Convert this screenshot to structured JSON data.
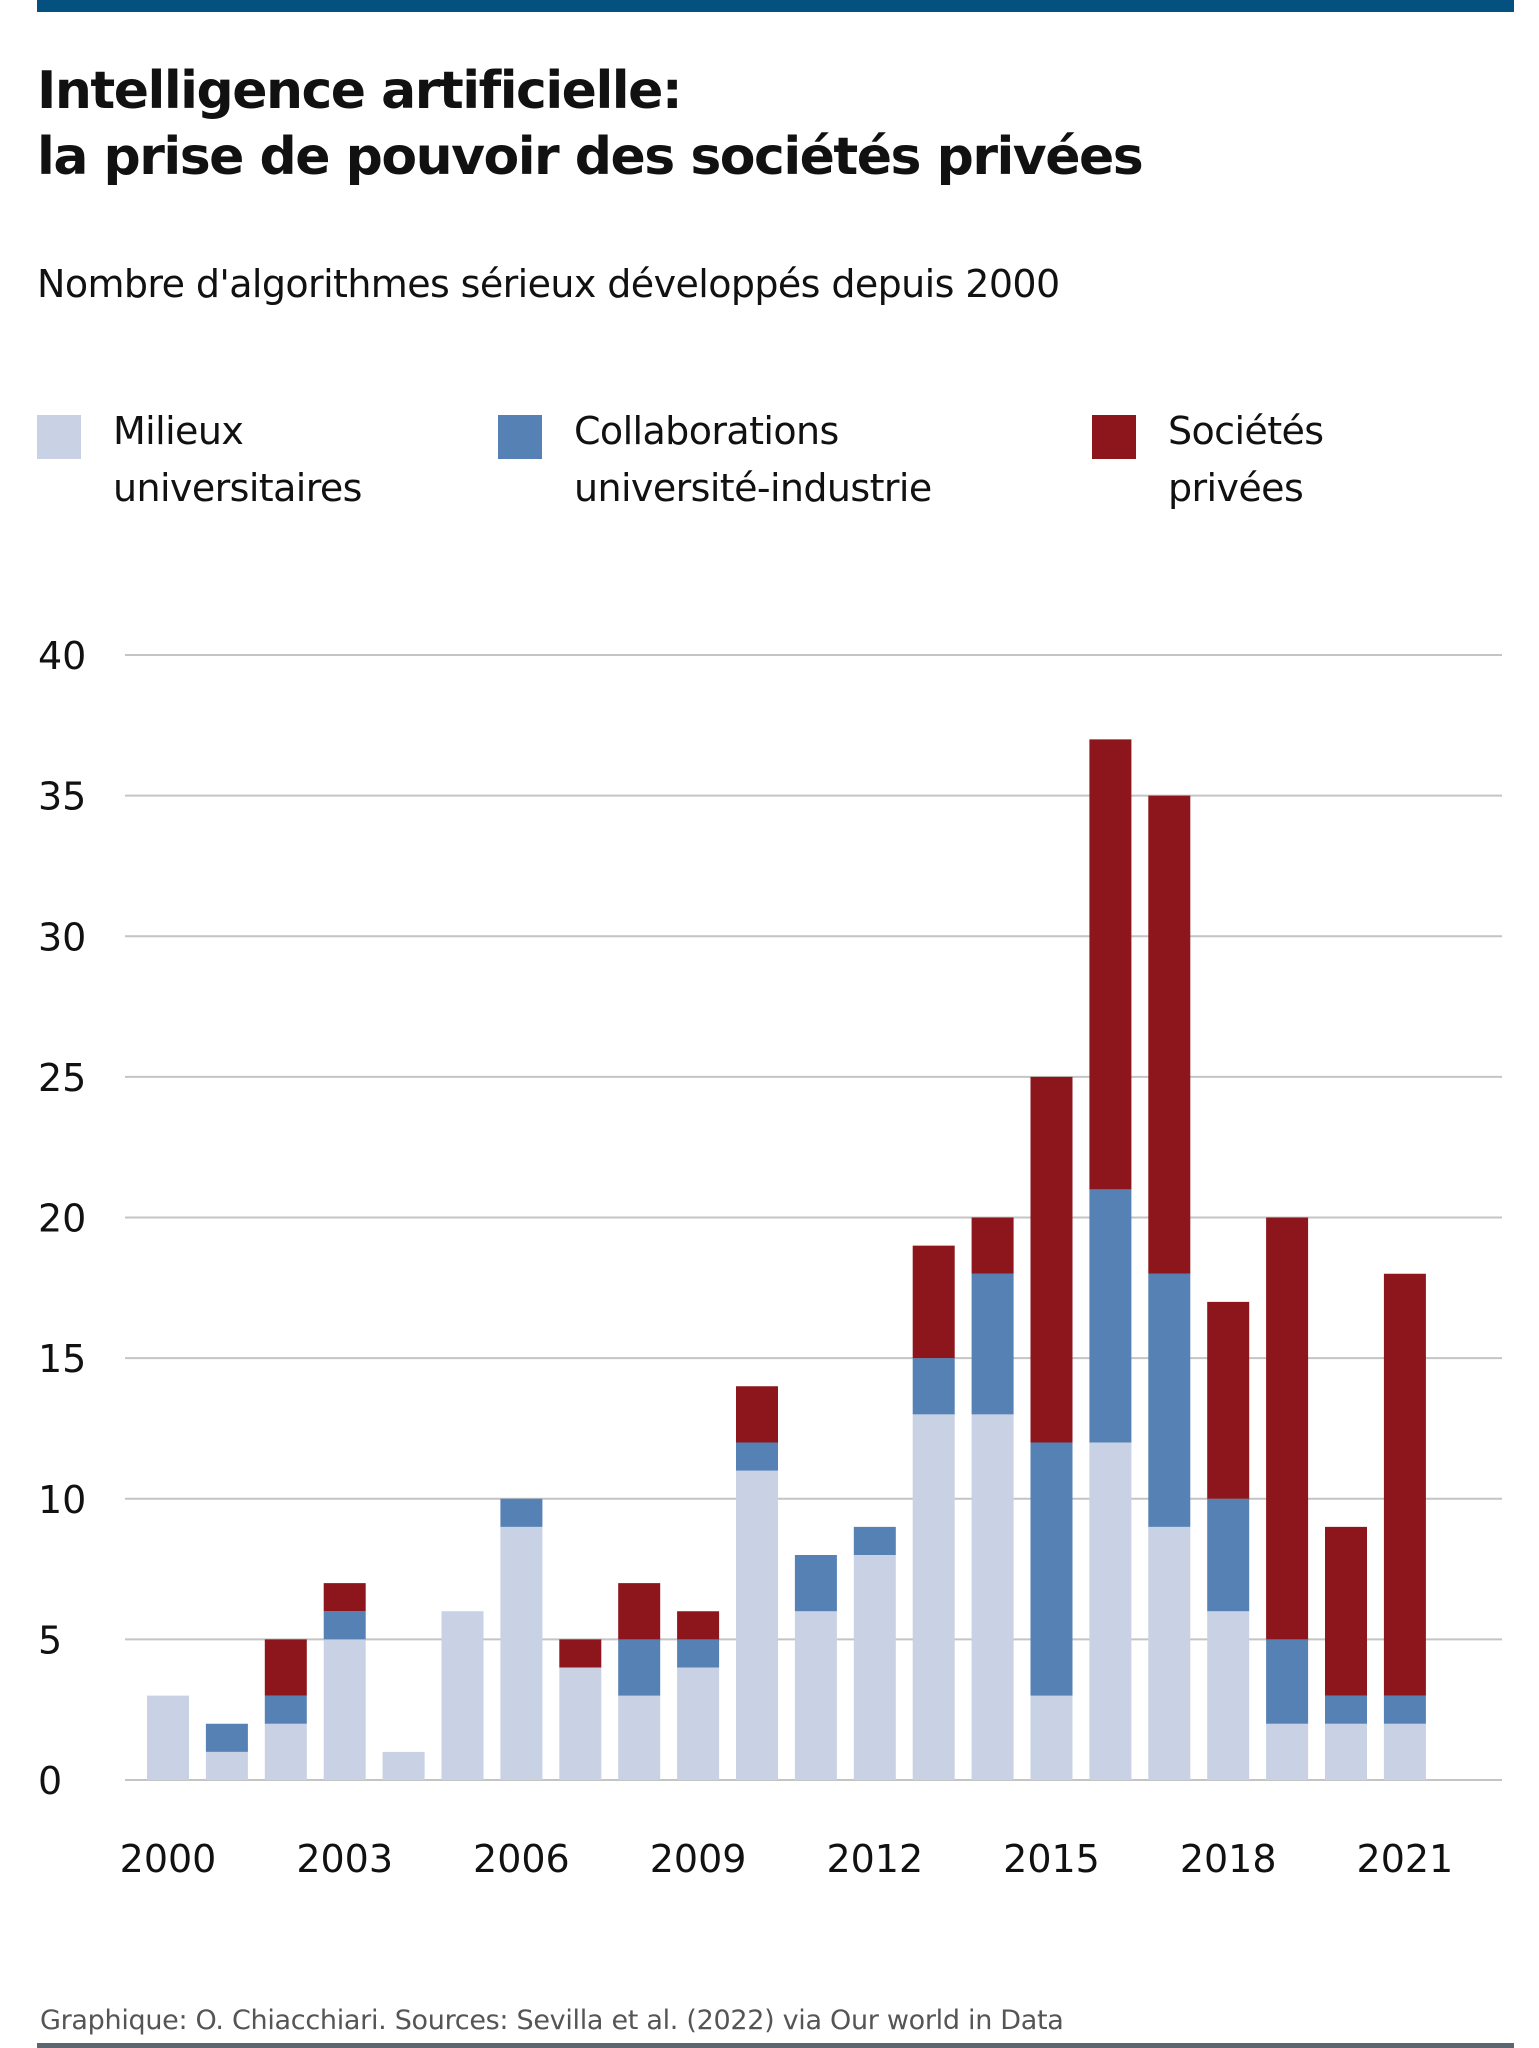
{
  "header": {
    "title_line1": "Intelligence artificielle:",
    "title_line2": "la prise de pouvoir des sociétés privées",
    "subtitle": "Nombre d'algorithmes sérieux développés depuis 2000"
  },
  "colors": {
    "top_bar": "#04507e",
    "academia": "#c8d2e4",
    "collaboration": "#5681b4",
    "industry": "#8c161c",
    "gridline": "#c4c4c4",
    "bottom_bar": "#5b6670"
  },
  "legend": [
    {
      "line1": "Milieux",
      "line2": "universitaires",
      "color": "#c8d2e4"
    },
    {
      "line1": "Collaborations",
      "line2": "université-industrie",
      "color": "#5681b4"
    },
    {
      "line1": "Sociétés",
      "line2": "privées",
      "color": "#8c161c"
    }
  ],
  "footer": {
    "credit": "Graphique: O. Chiacchiari. Sources:  Sevilla et al. (2022) via Our world in Data"
  },
  "chart_data": {
    "type": "bar",
    "stacked": true,
    "title": "Intelligence artificielle: la prise de pouvoir des sociétés privées",
    "subtitle": "Nombre d'algorithmes sérieux développés depuis 2000",
    "xlabel": "",
    "ylabel": "",
    "ylim": [
      0,
      40
    ],
    "yticks": [
      0,
      5,
      10,
      15,
      20,
      25,
      30,
      35,
      40
    ],
    "grid": true,
    "legend_position": "top-left",
    "categories": [
      "2000",
      "2001",
      "2002",
      "2003",
      "2004",
      "2005",
      "2006",
      "2007",
      "2008",
      "2009",
      "2010",
      "2011",
      "2012",
      "2013",
      "2014",
      "2015",
      "2016",
      "2017",
      "2018",
      "2019",
      "2020",
      "2021"
    ],
    "xtick_labels": [
      "2000",
      "2003",
      "2006",
      "2009",
      "2012",
      "2015",
      "2018",
      "2021"
    ],
    "series": [
      {
        "name": "Milieux universitaires",
        "color": "#c8d2e4",
        "values": [
          3,
          1,
          2,
          5,
          1,
          6,
          9,
          4,
          3,
          4,
          11,
          6,
          8,
          13,
          13,
          3,
          12,
          9,
          6,
          2,
          2,
          2
        ]
      },
      {
        "name": "Collaborations université-industrie",
        "color": "#5681b4",
        "values": [
          0,
          1,
          1,
          1,
          0,
          0,
          1,
          0,
          2,
          1,
          1,
          2,
          1,
          2,
          5,
          9,
          9,
          9,
          4,
          3,
          1,
          1
        ]
      },
      {
        "name": "Sociétés privées",
        "color": "#8c161c",
        "values": [
          0,
          0,
          2,
          1,
          0,
          0,
          0,
          1,
          2,
          1,
          2,
          0,
          0,
          4,
          2,
          13,
          16,
          17,
          7,
          15,
          6,
          15
        ]
      }
    ]
  }
}
